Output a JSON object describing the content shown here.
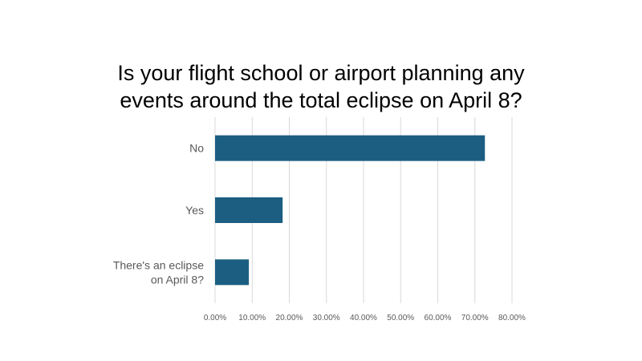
{
  "chart_data": {
    "type": "bar",
    "orientation": "horizontal",
    "title": "Is your flight school or airport planning any events around the total eclipse on April 8?",
    "title_lines": [
      "Is your flight school or airport planning any",
      "events around the total eclipse on April 8?"
    ],
    "categories": [
      "No",
      "Yes",
      "There's an eclipse on April 8?"
    ],
    "category_lines": [
      [
        "No"
      ],
      [
        "Yes"
      ],
      [
        "There's an eclipse",
        "on April 8?"
      ]
    ],
    "values": [
      72.7,
      18.2,
      9.1
    ],
    "xlim": [
      0,
      80
    ],
    "x_ticks": [
      "0.00%",
      "10.00%",
      "20.00%",
      "30.00%",
      "40.00%",
      "50.00%",
      "60.00%",
      "70.00%",
      "80.00%"
    ],
    "grid": true,
    "bar_color": "#1b5e82",
    "gridline_color": "#d9d9d9",
    "legend": "none"
  }
}
